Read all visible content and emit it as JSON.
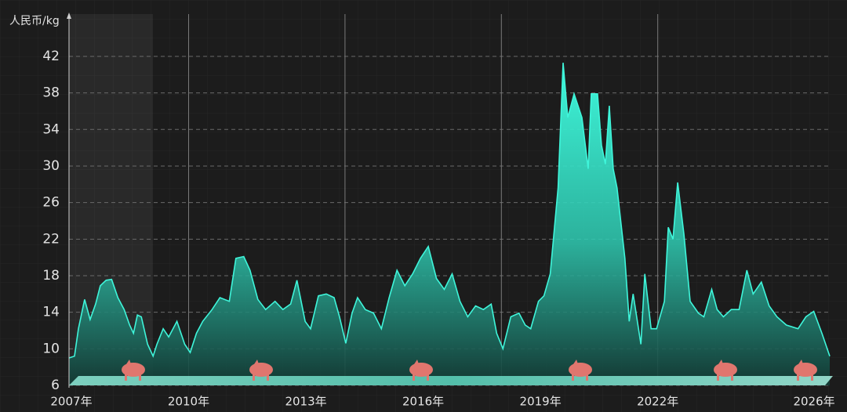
{
  "chart_data": {
    "type": "area",
    "y_axis_label": "人民币/kg",
    "x": [
      2006.94,
      2007.08,
      2007.18,
      2007.34,
      2007.48,
      2007.62,
      2007.74,
      2007.89,
      2008.03,
      2008.19,
      2008.35,
      2008.49,
      2008.59,
      2008.69,
      2008.79,
      2008.95,
      2009.09,
      2009.19,
      2009.35,
      2009.49,
      2009.7,
      2009.9,
      2010.04,
      2010.2,
      2010.36,
      2010.6,
      2010.8,
      2011.04,
      2011.21,
      2011.41,
      2011.57,
      2011.77,
      2011.97,
      2012.21,
      2012.41,
      2012.61,
      2012.77,
      2012.98,
      2013.12,
      2013.32,
      2013.52,
      2013.72,
      2013.86,
      2014.02,
      2014.18,
      2014.32,
      2014.52,
      2014.73,
      2014.93,
      2015.13,
      2015.33,
      2015.53,
      2015.73,
      2015.93,
      2016.13,
      2016.34,
      2016.54,
      2016.74,
      2016.94,
      2017.14,
      2017.34,
      2017.54,
      2017.74,
      2017.88,
      2018.04,
      2018.24,
      2018.45,
      2018.61,
      2018.75,
      2018.95,
      2019.09,
      2019.25,
      2019.45,
      2019.58,
      2019.7,
      2019.86,
      2020.06,
      2020.22,
      2020.3,
      2020.46,
      2020.56,
      2020.66,
      2020.76,
      2020.86,
      2020.96,
      2021.16,
      2021.27,
      2021.37,
      2021.57,
      2021.67,
      2021.83,
      2021.97,
      2022.17,
      2022.27,
      2022.39,
      2022.51,
      2022.67,
      2022.83,
      2023.04,
      2023.18,
      2023.38,
      2023.52,
      2023.68,
      2023.88,
      2024.08,
      2024.28,
      2024.44,
      2024.65,
      2024.85,
      2025.05,
      2025.29,
      2025.59,
      2025.79,
      2025.99,
      2026.2,
      2026.4
    ],
    "series": [
      {
        "color": "#3ff5da",
        "values": [
          9.0,
          9.2,
          12.2,
          15.4,
          13.2,
          14.9,
          16.9,
          17.5,
          17.6,
          15.6,
          14.3,
          12.6,
          11.7,
          13.7,
          13.5,
          10.5,
          9.2,
          10.5,
          12.2,
          11.3,
          13.0,
          10.5,
          9.6,
          11.7,
          13.0,
          14.3,
          15.6,
          15.2,
          19.9,
          20.1,
          18.6,
          15.4,
          14.3,
          15.2,
          14.3,
          14.9,
          17.5,
          13.0,
          12.2,
          15.8,
          16.0,
          15.6,
          13.5,
          10.6,
          13.9,
          15.6,
          14.3,
          13.9,
          12.2,
          15.6,
          18.6,
          16.9,
          18.2,
          19.9,
          21.2,
          17.7,
          16.5,
          18.2,
          15.2,
          13.5,
          14.7,
          14.3,
          14.9,
          11.7,
          10.0,
          13.5,
          13.9,
          12.6,
          12.2,
          15.2,
          15.8,
          18.2,
          27.6,
          41.3,
          35.3,
          37.9,
          35.3,
          29.7,
          37.9,
          37.9,
          32.3,
          30.2,
          36.6,
          29.7,
          27.6,
          19.9,
          13.0,
          16.0,
          10.5,
          18.2,
          12.2,
          12.2,
          15.2,
          23.3,
          22.0,
          28.2,
          22.5,
          15.2,
          13.9,
          13.5,
          16.5,
          14.3,
          13.5,
          14.3,
          14.3,
          18.6,
          16.0,
          17.3,
          14.7,
          13.5,
          12.6,
          12.2,
          13.5,
          14.1,
          11.7,
          9.2
        ]
      }
    ],
    "xlim": [
      2006.9,
      2026.4
    ],
    "xticks": [
      {
        "value": 2007,
        "label": "2007年"
      },
      {
        "value": 2010,
        "label": "2010年"
      },
      {
        "value": 2013,
        "label": "2013年"
      },
      {
        "value": 2016,
        "label": "2016年"
      },
      {
        "value": 2019,
        "label": "2019年"
      },
      {
        "value": 2022,
        "label": "2022年"
      },
      {
        "value": 2026,
        "label": "2026年"
      }
    ],
    "x_gridlines": [
      2010,
      2014,
      2018,
      2022
    ],
    "ylim": [
      6,
      46
    ],
    "yticks": [
      6,
      10,
      14,
      18,
      22,
      26,
      30,
      34,
      38,
      42
    ],
    "grid": true
  }
}
